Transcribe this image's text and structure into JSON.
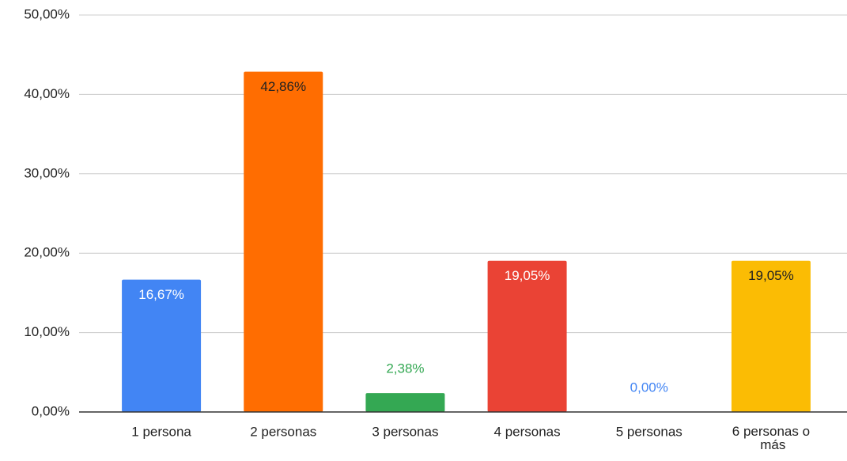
{
  "chart_data": {
    "type": "bar",
    "categories": [
      "1 persona",
      "2 personas",
      "3 personas",
      "4 personas",
      "5 personas",
      "6 personas o más"
    ],
    "values": [
      16.67,
      42.86,
      2.38,
      19.05,
      0,
      19.05
    ],
    "value_labels": [
      "16,67%",
      "42,86%",
      "2,38%",
      "19,05%",
      "0,00%",
      "19,05%"
    ],
    "colors": [
      "#4285f4",
      "#ff6d01",
      "#34a853",
      "#ea4335",
      "#4285f4",
      "#fbbc04"
    ],
    "ylim": [
      0,
      50
    ],
    "yticks": [
      {
        "value": 0,
        "label": "0,00%"
      },
      {
        "value": 10,
        "label": "10,00%"
      },
      {
        "value": 20,
        "label": "20,00%"
      },
      {
        "value": 30,
        "label": "30,00%"
      },
      {
        "value": 40,
        "label": "40,00%"
      },
      {
        "value": 50,
        "label": "50,00%"
      }
    ],
    "grid": true
  }
}
